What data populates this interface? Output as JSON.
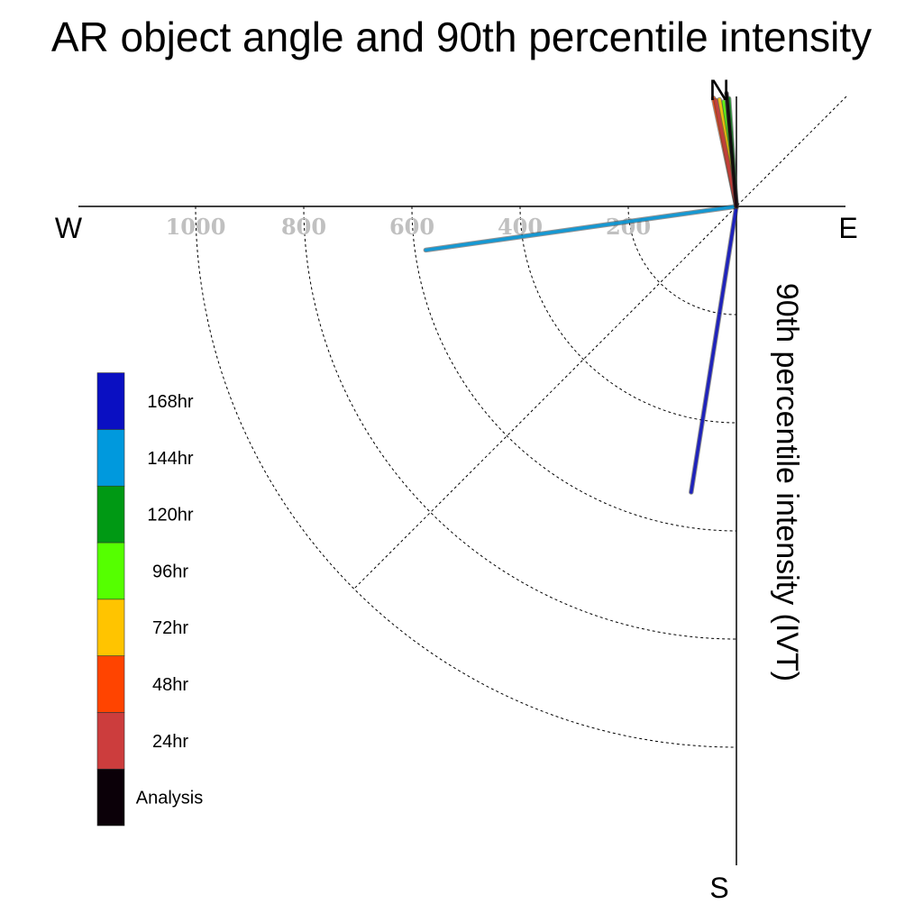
{
  "chart_data": {
    "type": "polar-vector",
    "title": "AR object angle and 90th percentile intensity",
    "ylabel": "90th percentile intensity (IVT)",
    "directions": {
      "north": "N",
      "south": "S",
      "east": "E",
      "west": "W"
    },
    "radial_ticks": [
      {
        "value": 200,
        "label": "200"
      },
      {
        "value": 400,
        "label": "400"
      },
      {
        "value": 600,
        "label": "600"
      },
      {
        "value": 800,
        "label": "800"
      },
      {
        "value": 1000,
        "label": "1000"
      }
    ],
    "r_max": 1200,
    "grid": true,
    "legend_placement": "left",
    "series": [
      {
        "name": "Analysis",
        "color": "#0b0008",
        "angle_deg": -5,
        "intensity": 210
      },
      {
        "name": "24hr",
        "color": "#cc3d3d",
        "angle_deg": -11,
        "intensity": 200
      },
      {
        "name": "48hr",
        "color": "#ff4400",
        "angle_deg": -12,
        "intensity": 205
      },
      {
        "name": "72hr",
        "color": "#ffc400",
        "angle_deg": -9,
        "intensity": 200
      },
      {
        "name": "96hr",
        "color": "#55ff00",
        "angle_deg": -7,
        "intensity": 195
      },
      {
        "name": "120hr",
        "color": "#009914",
        "angle_deg": -4,
        "intensity": 200
      },
      {
        "name": "144hr",
        "color": "#0099dd",
        "angle_deg": -98,
        "intensity": 580
      },
      {
        "name": "168hr",
        "color": "#0a0fc2",
        "angle_deg": -171,
        "intensity": 535
      }
    ]
  }
}
